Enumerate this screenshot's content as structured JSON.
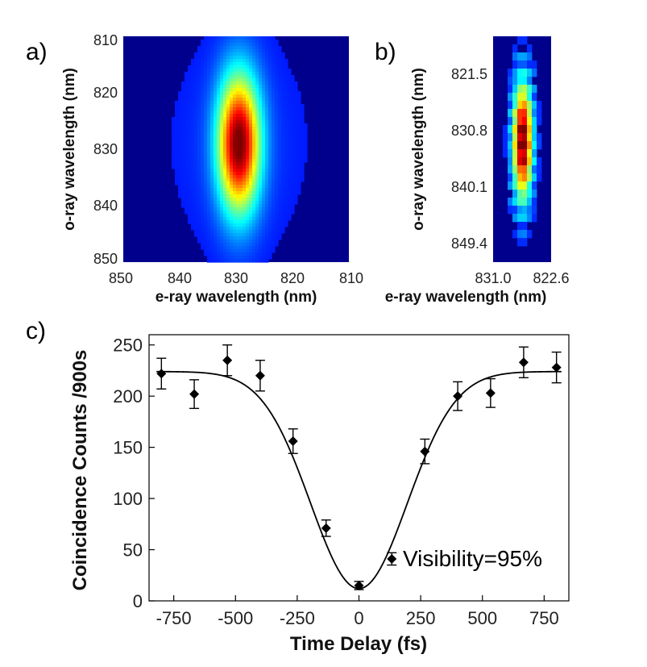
{
  "panel_labels": {
    "a": "a)",
    "b": "b)",
    "c": "c)"
  },
  "chart_data": [
    {
      "type": "heatmap",
      "panel": "a)",
      "xlabel": "e-ray wavelength (nm)",
      "ylabel": "o-ray wavelength (nm)",
      "x_ticks": [
        "850",
        "840",
        "830",
        "820",
        "810"
      ],
      "y_ticks": [
        "810",
        "820",
        "830",
        "840",
        "850"
      ],
      "xlim": [
        850,
        810
      ],
      "ylim": [
        810,
        850
      ],
      "colormap": "jet",
      "peak": {
        "x": 829.5,
        "y": 829.0
      },
      "spread": {
        "x": 2.6,
        "y": 8.5
      }
    },
    {
      "type": "heatmap",
      "panel": "b)",
      "xlabel": "e-ray wavelength (nm)",
      "ylabel": "o-ray wavelength (nm)",
      "x_ticks": [
        "831.0",
        "822.6"
      ],
      "y_ticks": [
        "821.5",
        "830.8",
        "840.1",
        "849.4"
      ],
      "colormap": "jet",
      "cells": {
        "cols": 12,
        "rows": 28,
        "peak_col": 5.6,
        "peak_row": 12.5,
        "spread_col": 1.4,
        "spread_row": 5.0
      }
    },
    {
      "type": "scatter",
      "panel": "c)",
      "xlabel": "Time Delay (fs)",
      "ylabel": "Coincidence Counts /900s",
      "x_ticks": [
        "-750",
        "-500",
        "-250",
        "0",
        "250",
        "500",
        "750"
      ],
      "y_ticks": [
        "0",
        "50",
        "100",
        "150",
        "200",
        "250"
      ],
      "xlim": [
        -850,
        850
      ],
      "ylim": [
        0,
        260
      ],
      "points": [
        {
          "x": -800,
          "y": 222,
          "err": 15
        },
        {
          "x": -667,
          "y": 202,
          "err": 14
        },
        {
          "x": -533,
          "y": 235,
          "err": 15
        },
        {
          "x": -400,
          "y": 220,
          "err": 15
        },
        {
          "x": -267,
          "y": 156,
          "err": 12
        },
        {
          "x": -133,
          "y": 71,
          "err": 8
        },
        {
          "x": 0,
          "y": 15,
          "err": 4
        },
        {
          "x": 133,
          "y": 41,
          "err": 6
        },
        {
          "x": 267,
          "y": 146,
          "err": 12
        },
        {
          "x": 400,
          "y": 200,
          "err": 14
        },
        {
          "x": 533,
          "y": 203,
          "err": 14
        },
        {
          "x": 667,
          "y": 233,
          "err": 15
        },
        {
          "x": 800,
          "y": 228,
          "err": 15
        }
      ],
      "fit": {
        "baseline": 224,
        "minimum": 12,
        "center": 0,
        "width": 240
      },
      "annotation": "Visibility=95%"
    }
  ]
}
